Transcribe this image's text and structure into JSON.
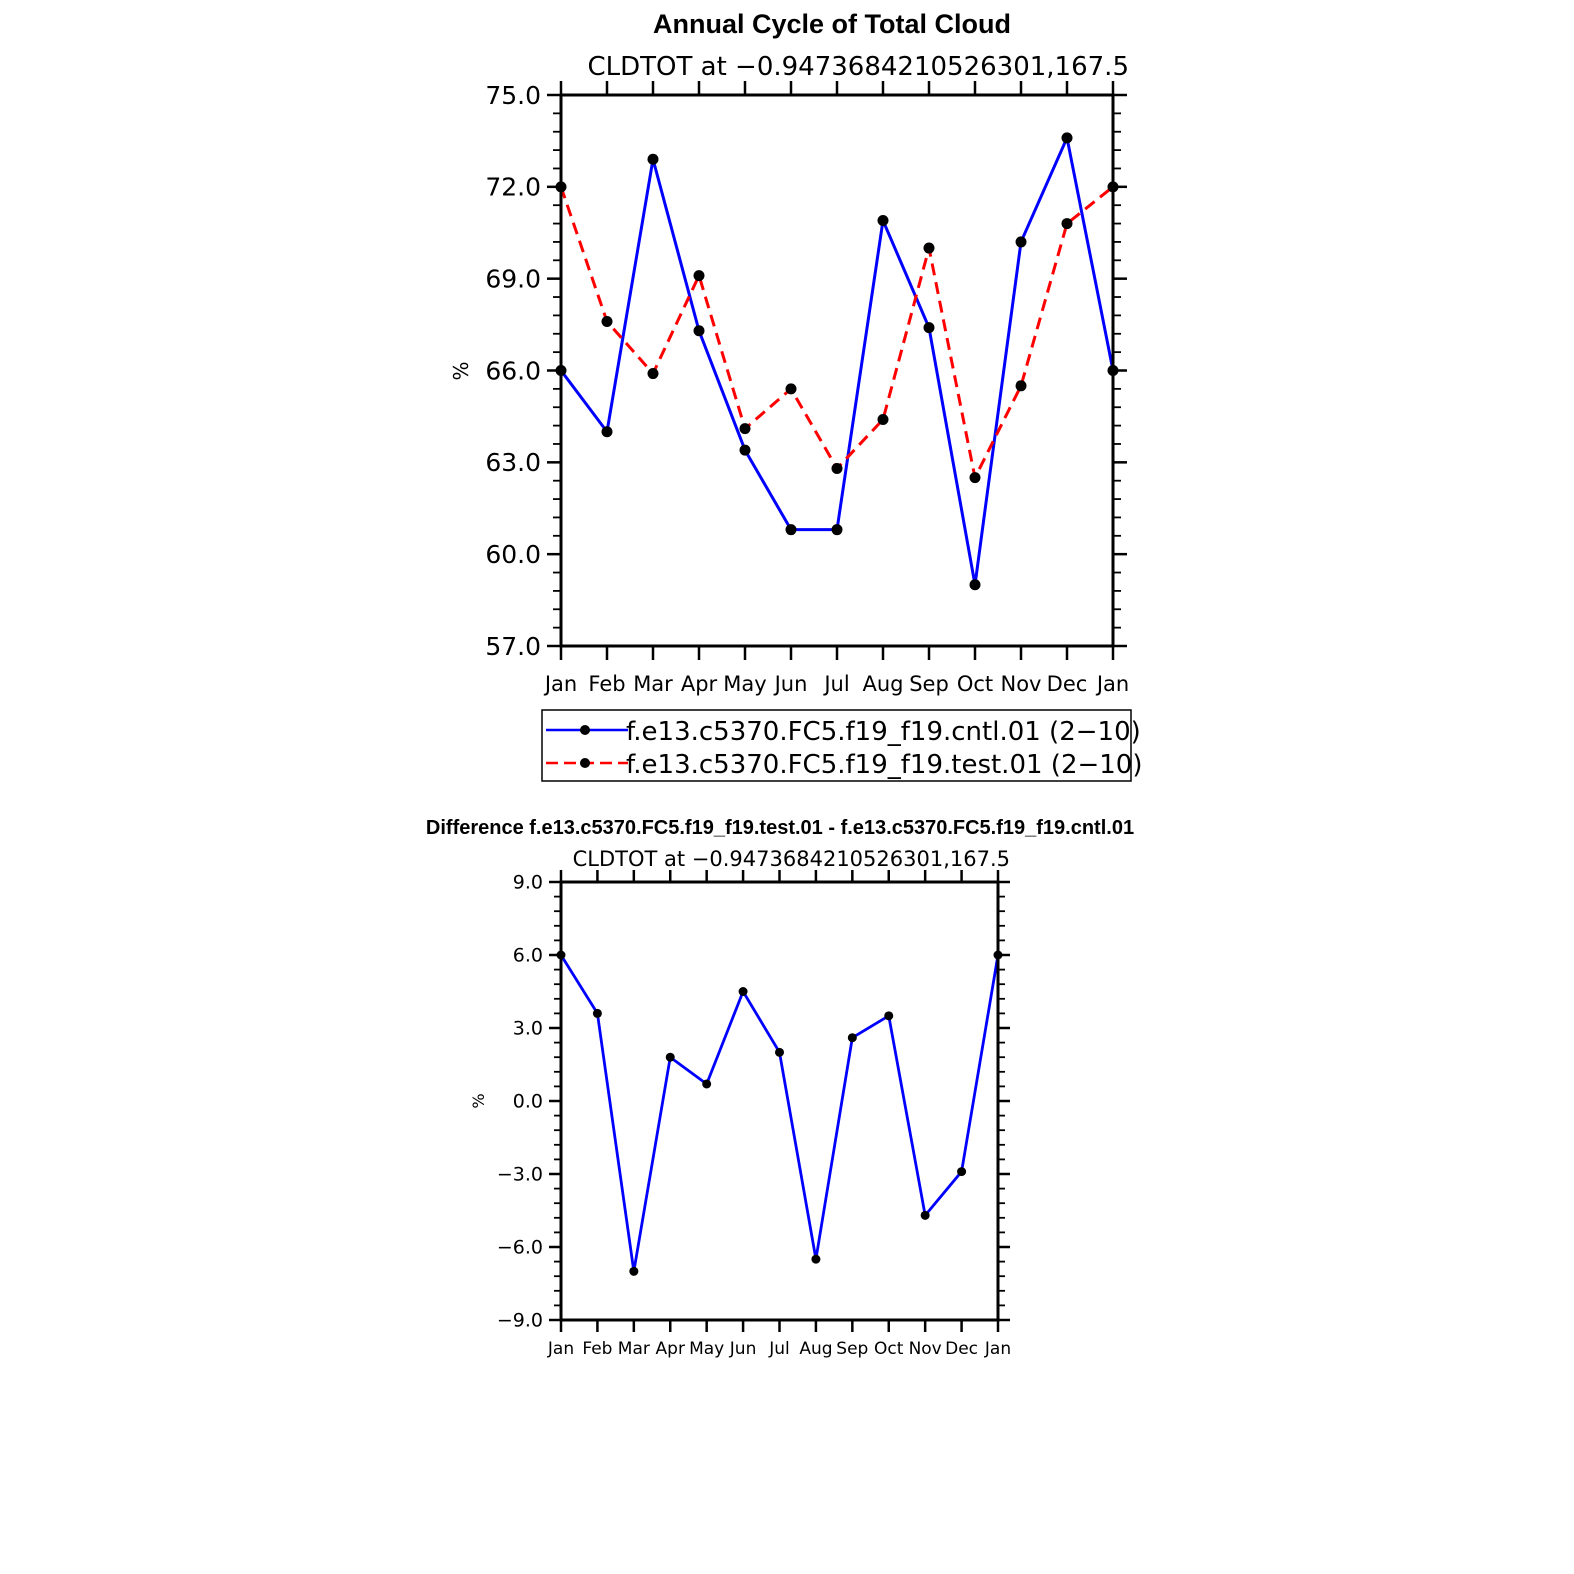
{
  "chart_data": [
    {
      "type": "line",
      "title": "Annual Cycle of Total Cloud",
      "subtitle": "CLDTOT at −0.9473684210526301,167.5",
      "ylabel": "%",
      "xlabel": "",
      "ylim": [
        57.0,
        75.0
      ],
      "yticks": [
        57.0,
        60.0,
        63.0,
        66.0,
        69.0,
        72.0,
        75.0
      ],
      "ytick_labels": [
        "57.0",
        "60.0",
        "63.0",
        "66.0",
        "69.0",
        "72.0",
        "75.0"
      ],
      "categories": [
        "Jan",
        "Feb",
        "Mar",
        "Apr",
        "May",
        "Jun",
        "Jul",
        "Aug",
        "Sep",
        "Oct",
        "Nov",
        "Dec",
        "Jan"
      ],
      "grid": false,
      "legend_position": "bottom",
      "series": [
        {
          "name": "f.e13.c5370.FC5.f19_f19.cntl.01  (2−10)",
          "color": "#0000ff",
          "dash": "solid",
          "values": [
            66.0,
            64.0,
            72.9,
            67.3,
            63.4,
            60.8,
            60.8,
            70.9,
            67.4,
            59.0,
            70.2,
            73.6,
            66.0
          ]
        },
        {
          "name": "f.e13.c5370.FC5.f19_f19.test.01  (2−10)",
          "color": "#ff0000",
          "dash": "dashed",
          "values": [
            72.0,
            67.6,
            65.9,
            69.1,
            64.1,
            65.4,
            62.8,
            64.4,
            70.0,
            62.5,
            65.5,
            70.8,
            72.0
          ]
        }
      ]
    },
    {
      "type": "line",
      "title": "Difference f.e13.c5370.FC5.f19_f19.test.01 - f.e13.c5370.FC5.f19_f19.cntl.01",
      "subtitle": "CLDTOT at −0.9473684210526301,167.5",
      "ylabel": "%",
      "xlabel": "",
      "ylim": [
        -9.0,
        9.0
      ],
      "yticks": [
        -9.0,
        -6.0,
        -3.0,
        0.0,
        3.0,
        6.0,
        9.0
      ],
      "ytick_labels": [
        "−9.0",
        "−6.0",
        "−3.0",
        "0.0",
        "3.0",
        "6.0",
        "9.0"
      ],
      "categories": [
        "Jan",
        "Feb",
        "Mar",
        "Apr",
        "May",
        "Jun",
        "Jul",
        "Aug",
        "Sep",
        "Oct",
        "Nov",
        "Dec",
        "Jan"
      ],
      "grid": false,
      "series": [
        {
          "color": "#0000ff",
          "dash": "solid",
          "values": [
            6.0,
            3.6,
            -7.0,
            1.8,
            0.7,
            4.5,
            2.0,
            -6.5,
            2.6,
            3.5,
            -4.7,
            -2.9,
            6.0
          ]
        }
      ]
    }
  ]
}
